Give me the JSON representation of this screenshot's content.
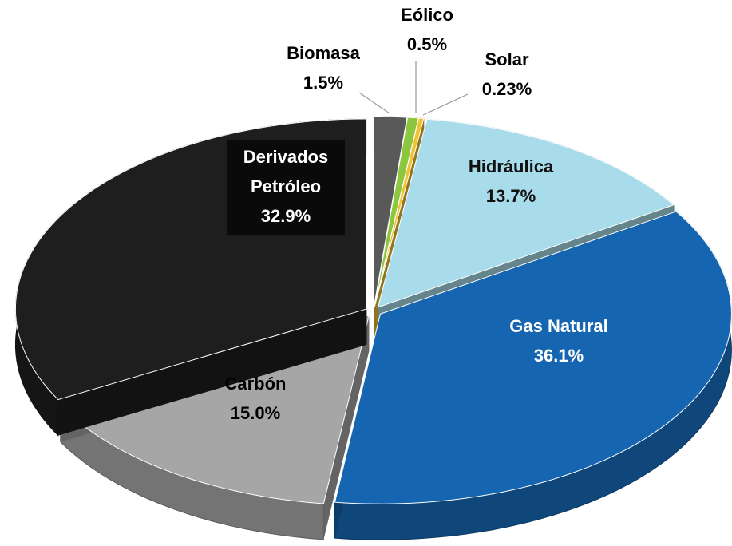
{
  "chart_data": {
    "type": "pie3d",
    "categories": [
      "Biomasa",
      "Eólico",
      "Solar",
      "Hidráulica",
      "Gas Natural",
      "Carbón",
      "Derivados Petróleo"
    ],
    "values": [
      1.5,
      0.5,
      0.23,
      13.7,
      36.1,
      15.0,
      32.9
    ],
    "value_labels": [
      "1.5%",
      "0.5%",
      "0.23%",
      "13.7%",
      "36.1%",
      "15.0%",
      "32.9%"
    ],
    "colors": [
      "#595959",
      "#8dc63f",
      "#f2c230",
      "#a9dcea",
      "#1565b0",
      "#a6a6a6",
      "#1e1e1e"
    ]
  }
}
